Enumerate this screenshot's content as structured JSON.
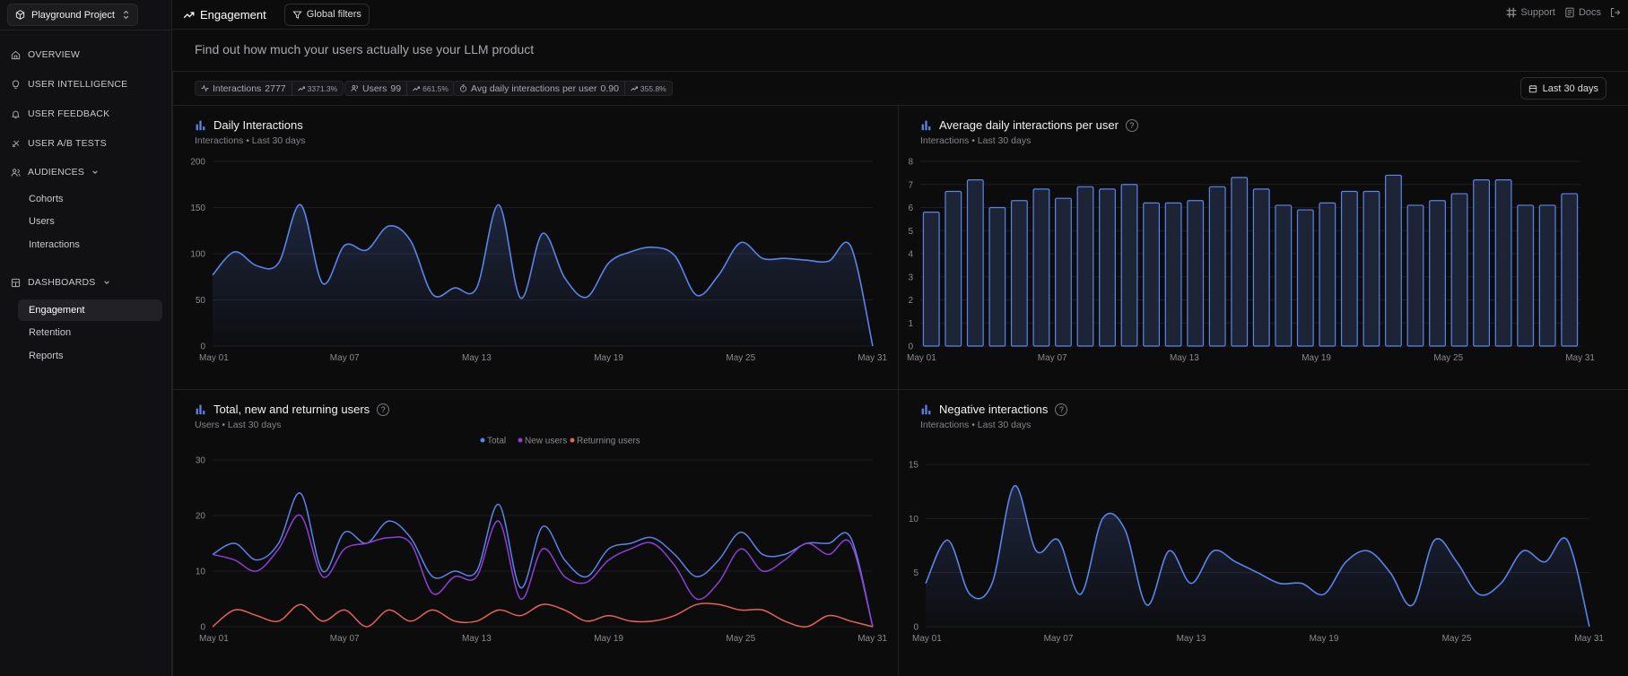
{
  "colors": {
    "accent": "#5b84ea",
    "purple": "#8d3fd6",
    "red": "#e4625b"
  },
  "sidebar": {
    "project": "Playground Project",
    "nav": [
      {
        "label": "OVERVIEW",
        "icon": "home-icon"
      },
      {
        "label": "USER INTELLIGENCE",
        "icon": "lightbulb-icon"
      },
      {
        "label": "USER FEEDBACK",
        "icon": "bell-icon"
      },
      {
        "label": "USER A/B TESTS",
        "icon": "flask-icon"
      },
      {
        "label": "AUDIENCES",
        "icon": "users-icon"
      },
      {
        "label": "DASHBOARDS",
        "icon": "dashboard-icon"
      }
    ],
    "audiences": [
      "Cohorts",
      "Users",
      "Interactions"
    ],
    "dashboards": [
      "Engagement",
      "Retention",
      "Reports"
    ]
  },
  "header": {
    "title": "Engagement",
    "filters": "Global filters",
    "support": "Support",
    "docs": "Docs"
  },
  "subtitle": "Find out how much your users actually use your LLM product",
  "stats": [
    {
      "label": "Interactions",
      "value": "2777",
      "change": "3371.3%"
    },
    {
      "label": "Users",
      "value": "99",
      "change": "661.5%"
    },
    {
      "label": "Avg daily interactions per user",
      "value": "0.90",
      "change": "355.8%"
    }
  ],
  "daterange": "Last 30 days",
  "chart_data": [
    {
      "type": "area",
      "title": "Daily Interactions",
      "subtitle": "Interactions • Last 30 days",
      "yticks": [
        0,
        50,
        100,
        150,
        200
      ],
      "ylim": [
        0,
        200
      ],
      "xticks": [
        "May 01",
        "May 07",
        "May 13",
        "May 19",
        "May 25",
        "May 31"
      ],
      "values": [
        77,
        102,
        87,
        90,
        153,
        68,
        109,
        104,
        130,
        114,
        56,
        63,
        63,
        153,
        52,
        122,
        74,
        53,
        90,
        102,
        107,
        98,
        55,
        77,
        112,
        95,
        95,
        93,
        92,
        108,
        0
      ]
    },
    {
      "type": "bar",
      "title": "Average daily interactions per user",
      "subtitle": "Interactions • Last 30 days",
      "yticks": [
        0,
        1,
        2,
        3,
        4,
        5,
        6,
        7,
        8
      ],
      "ylim": [
        0,
        8
      ],
      "xticks": [
        "May 01",
        "May 07",
        "May 13",
        "May 19",
        "May 25",
        "May 31"
      ],
      "values": [
        5.8,
        6.7,
        7.2,
        6.0,
        6.3,
        6.8,
        6.4,
        6.9,
        6.8,
        7.0,
        6.2,
        6.2,
        6.3,
        6.9,
        7.3,
        6.8,
        6.1,
        5.9,
        6.2,
        6.7,
        6.7,
        7.4,
        6.1,
        6.3,
        6.6,
        7.2,
        7.2,
        6.1,
        6.1,
        6.6
      ]
    },
    {
      "type": "line",
      "title": "Total, new and returning users",
      "subtitle": "Users • Last 30 days",
      "yticks": [
        0,
        10,
        20,
        30
      ],
      "ylim": [
        0,
        30
      ],
      "xticks": [
        "May 01",
        "May 07",
        "May 13",
        "May 19",
        "May 25",
        "May 31"
      ],
      "legend": [
        "Total",
        "New users",
        "Returning users"
      ],
      "series": [
        {
          "name": "Total",
          "values": [
            13,
            15,
            12,
            15,
            24,
            10,
            17,
            15,
            19,
            16,
            9,
            10,
            10,
            22,
            7,
            18,
            12,
            9,
            14,
            15,
            16,
            13,
            9,
            12,
            17,
            13,
            13,
            15,
            15,
            16,
            0
          ]
        },
        {
          "name": "New users",
          "values": [
            13,
            12,
            10,
            14,
            20,
            9,
            14,
            15,
            16,
            15,
            6,
            9,
            9,
            19,
            5,
            14,
            9,
            8,
            12,
            14,
            15,
            11,
            5,
            8,
            14,
            10,
            12,
            15,
            13,
            15,
            0
          ]
        },
        {
          "name": "Returning users",
          "values": [
            0,
            3,
            2,
            1,
            4,
            1,
            3,
            0,
            3,
            1,
            3,
            1,
            1,
            3,
            2,
            4,
            3,
            1,
            2,
            1,
            1,
            2,
            4,
            4,
            3,
            3,
            1,
            0,
            2,
            1,
            0
          ]
        }
      ]
    },
    {
      "type": "area",
      "title": "Negative interactions",
      "subtitle": "Interactions • Last 30 days",
      "yticks": [
        0,
        5,
        10,
        15
      ],
      "ylim": [
        0,
        15
      ],
      "xticks": [
        "May 01",
        "May 07",
        "May 13",
        "May 19",
        "May 25",
        "May 31"
      ],
      "values": [
        4,
        8,
        3,
        4,
        13,
        7,
        8,
        3,
        10,
        9,
        2,
        7,
        4,
        7,
        6,
        5,
        4,
        4,
        3,
        6,
        7,
        5,
        2,
        8,
        6,
        3,
        4,
        7,
        6,
        8,
        0
      ]
    }
  ]
}
